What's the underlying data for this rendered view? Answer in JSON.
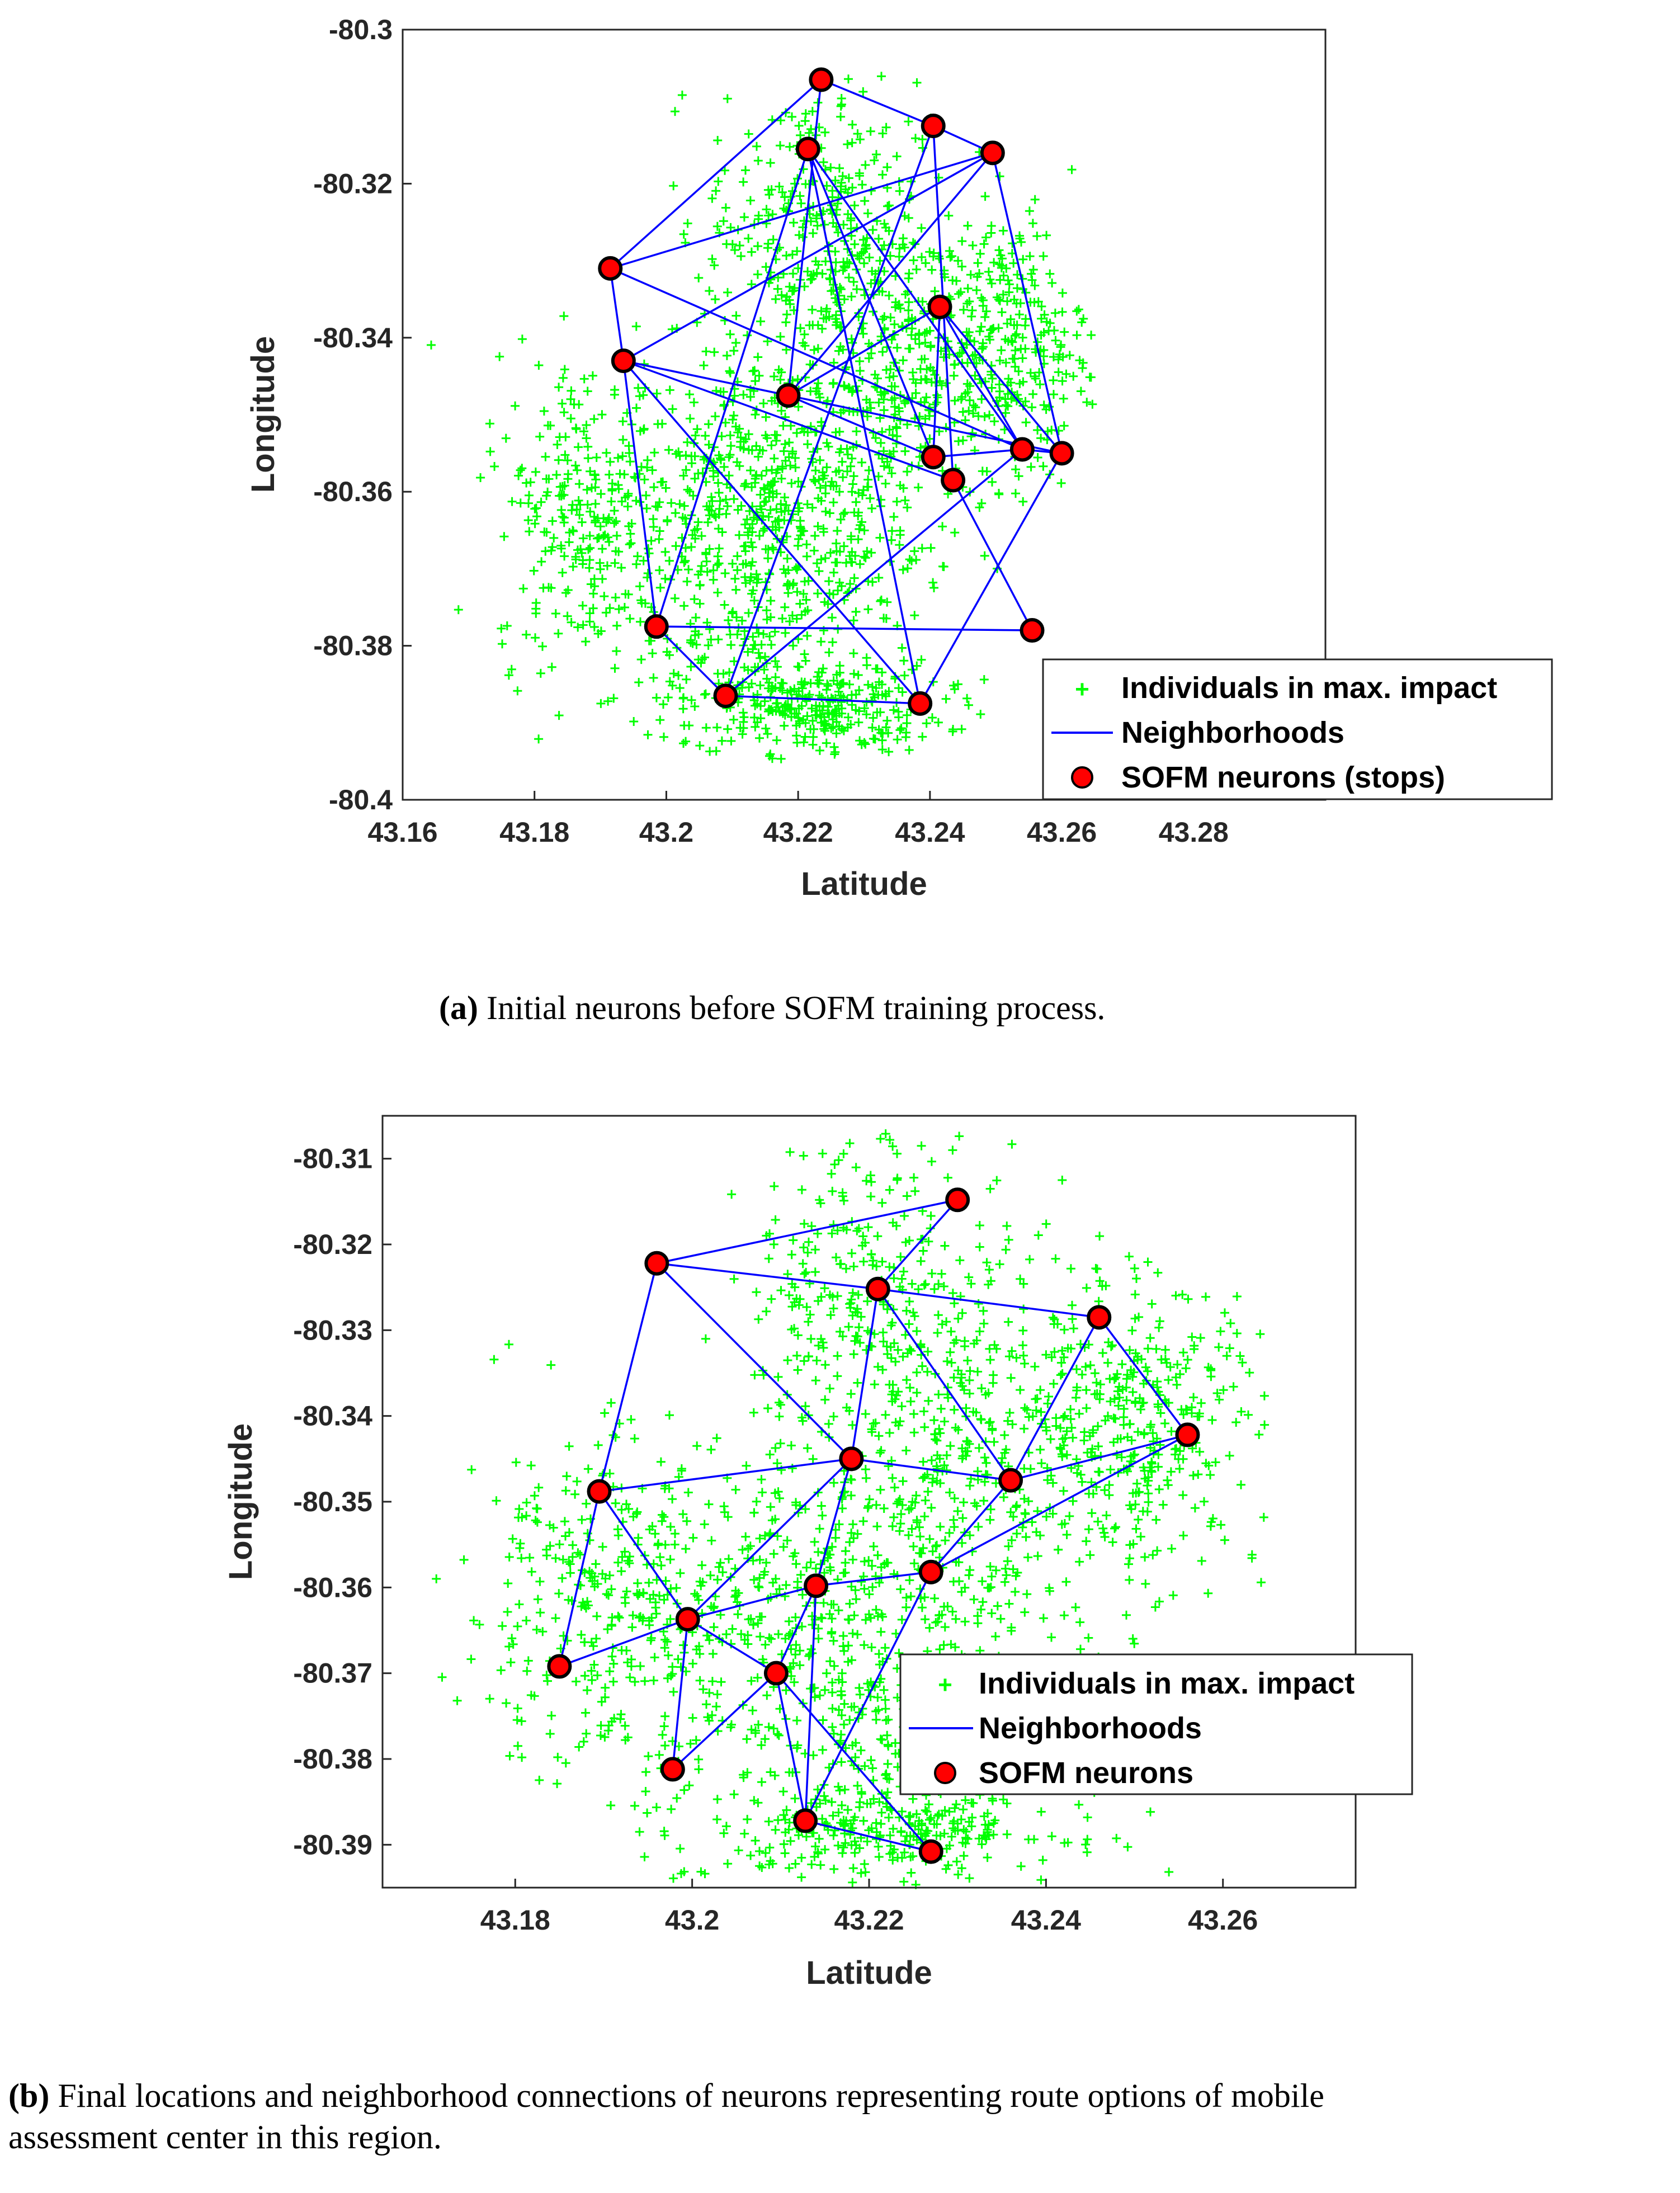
{
  "colors": {
    "points": "#00ff00",
    "lines": "#0000ff",
    "neurons": "#ff0000",
    "neuron_edge": "#000000"
  },
  "chart_data": [
    {
      "type": "scatter",
      "xlabel": "Latitude",
      "ylabel": "Longitude",
      "xlim": [
        43.16,
        43.3
      ],
      "ylim": [
        -80.4,
        -80.3
      ],
      "xticks": [
        "43.16",
        "43.18",
        "43.2",
        "43.22",
        "43.24",
        "43.26",
        "43.28"
      ],
      "yticks": [
        "-80.3",
        "-80.32",
        "-80.34",
        "-80.36",
        "-80.38",
        "-80.4"
      ],
      "legend_position": "bottom-right",
      "legend": [
        "Individuals in max. impact",
        "Neighborhoods",
        "SOFM neurons (stops)"
      ],
      "neurons": [
        {
          "id": "n1",
          "x": 43.2235,
          "y": -80.3065
        },
        {
          "id": "n2",
          "x": 43.2215,
          "y": -80.3155
        },
        {
          "id": "n3",
          "x": 43.2405,
          "y": -80.3125
        },
        {
          "id": "n4",
          "x": 43.2495,
          "y": -80.316
        },
        {
          "id": "n5",
          "x": 43.1915,
          "y": -80.331
        },
        {
          "id": "n6",
          "x": 43.2415,
          "y": -80.336
        },
        {
          "id": "n7",
          "x": 43.1935,
          "y": -80.343
        },
        {
          "id": "n8",
          "x": 43.2185,
          "y": -80.3475
        },
        {
          "id": "n9",
          "x": 43.2405,
          "y": -80.3555
        },
        {
          "id": "n10",
          "x": 43.2435,
          "y": -80.3585
        },
        {
          "id": "n11",
          "x": 43.254,
          "y": -80.3545
        },
        {
          "id": "n12",
          "x": 43.26,
          "y": -80.355
        },
        {
          "id": "n13",
          "x": 43.1985,
          "y": -80.3775
        },
        {
          "id": "n14",
          "x": 43.2555,
          "y": -80.378
        },
        {
          "id": "n15",
          "x": 43.209,
          "y": -80.3865
        },
        {
          "id": "n16",
          "x": 43.2385,
          "y": -80.3875
        }
      ],
      "edges": [
        [
          "n1",
          "n3"
        ],
        [
          "n1",
          "n5"
        ],
        [
          "n1",
          "n8"
        ],
        [
          "n3",
          "n4"
        ],
        [
          "n4",
          "n12"
        ],
        [
          "n4",
          "n5"
        ],
        [
          "n4",
          "n8"
        ],
        [
          "n2",
          "n13"
        ],
        [
          "n2",
          "n9"
        ],
        [
          "n2",
          "n11"
        ],
        [
          "n2",
          "n16"
        ],
        [
          "n3",
          "n10"
        ],
        [
          "n5",
          "n7"
        ],
        [
          "n5",
          "n11"
        ],
        [
          "n7",
          "n4"
        ],
        [
          "n7",
          "n13"
        ],
        [
          "n7",
          "n8"
        ],
        [
          "n7",
          "n10"
        ],
        [
          "n7",
          "n16"
        ],
        [
          "n8",
          "n6"
        ],
        [
          "n8",
          "n12"
        ],
        [
          "n8",
          "n9"
        ],
        [
          "n6",
          "n9"
        ],
        [
          "n6",
          "n11"
        ],
        [
          "n6",
          "n12"
        ],
        [
          "n13",
          "n14"
        ],
        [
          "n13",
          "n15"
        ],
        [
          "n15",
          "n16"
        ],
        [
          "n15",
          "n11"
        ],
        [
          "n15",
          "n3"
        ],
        [
          "n16",
          "n12"
        ],
        [
          "n10",
          "n14"
        ],
        [
          "n9",
          "n11"
        ],
        [
          "n11",
          "n12"
        ]
      ]
    },
    {
      "type": "scatter",
      "xlabel": "Latitude",
      "ylabel": "Longitude",
      "xlim": [
        43.165,
        43.275
      ],
      "ylim": [
        -80.395,
        -80.305
      ],
      "xticks": [
        "43.18",
        "43.2",
        "43.22",
        "43.24",
        "43.26"
      ],
      "yticks": [
        "-80.31",
        "-80.32",
        "-80.33",
        "-80.34",
        "-80.35",
        "-80.36",
        "-80.37",
        "-80.38",
        "-80.39"
      ],
      "legend_position": "bottom-right",
      "legend": [
        "Individuals in max. impact",
        "Neighborhoods",
        "SOFM neurons"
      ],
      "neurons": [
        {
          "id": "m1",
          "x": 43.23,
          "y": -80.3148
        },
        {
          "id": "m2",
          "x": 43.196,
          "y": -80.3222
        },
        {
          "id": "m3",
          "x": 43.221,
          "y": -80.3252
        },
        {
          "id": "m4",
          "x": 43.246,
          "y": -80.3285
        },
        {
          "id": "m5",
          "x": 43.256,
          "y": -80.3422
        },
        {
          "id": "m6",
          "x": 43.218,
          "y": -80.345
        },
        {
          "id": "m7",
          "x": 43.236,
          "y": -80.3475
        },
        {
          "id": "m8",
          "x": 43.1895,
          "y": -80.3488
        },
        {
          "id": "m9",
          "x": 43.227,
          "y": -80.3582
        },
        {
          "id": "m10",
          "x": 43.214,
          "y": -80.3598
        },
        {
          "id": "m11",
          "x": 43.1995,
          "y": -80.3637
        },
        {
          "id": "m12",
          "x": 43.185,
          "y": -80.3692
        },
        {
          "id": "m13",
          "x": 43.2095,
          "y": -80.37
        },
        {
          "id": "m14",
          "x": 43.1978,
          "y": -80.3812
        },
        {
          "id": "m15",
          "x": 43.2128,
          "y": -80.3872
        },
        {
          "id": "m16",
          "x": 43.227,
          "y": -80.3908
        }
      ],
      "edges": [
        [
          "m2",
          "m1"
        ],
        [
          "m2",
          "m3"
        ],
        [
          "m1",
          "m3"
        ],
        [
          "m3",
          "m4"
        ],
        [
          "m2",
          "m8"
        ],
        [
          "m2",
          "m6"
        ],
        [
          "m3",
          "m6"
        ],
        [
          "m3",
          "m7"
        ],
        [
          "m4",
          "m7"
        ],
        [
          "m4",
          "m5"
        ],
        [
          "m5",
          "m7"
        ],
        [
          "m5",
          "m9"
        ],
        [
          "m6",
          "m8"
        ],
        [
          "m6",
          "m7"
        ],
        [
          "m6",
          "m10"
        ],
        [
          "m6",
          "m11"
        ],
        [
          "m7",
          "m9"
        ],
        [
          "m8",
          "m12"
        ],
        [
          "m8",
          "m11"
        ],
        [
          "m9",
          "m10"
        ],
        [
          "m9",
          "m15"
        ],
        [
          "m10",
          "m11"
        ],
        [
          "m10",
          "m13"
        ],
        [
          "m10",
          "m15"
        ],
        [
          "m11",
          "m12"
        ],
        [
          "m11",
          "m13"
        ],
        [
          "m11",
          "m14"
        ],
        [
          "m13",
          "m14"
        ],
        [
          "m13",
          "m15"
        ],
        [
          "m13",
          "m16"
        ],
        [
          "m15",
          "m16"
        ]
      ]
    }
  ],
  "captions": [
    {
      "label": "(a)",
      "text": " Initial neurons before SOFM training process."
    },
    {
      "label": "(b)",
      "text": " Final locations and neighborhood connections of neurons representing route options of mobile",
      "text2": "assessment center in this region."
    }
  ]
}
